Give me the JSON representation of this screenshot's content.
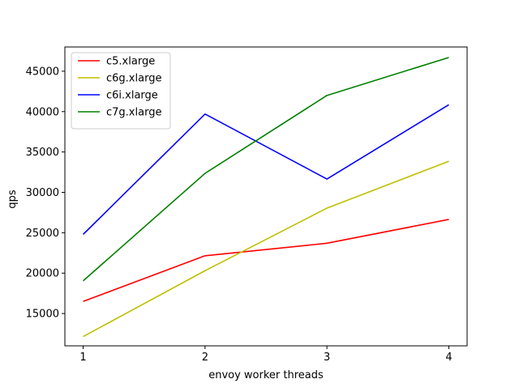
{
  "chart_data": {
    "type": "line",
    "xlabel": "envoy worker threads",
    "ylabel": "qps",
    "x": [
      1,
      2,
      3,
      4
    ],
    "xticks": [
      "1",
      "2",
      "3",
      "4"
    ],
    "xlim": [
      0.85,
      4.15
    ],
    "ylim": [
      11000,
      48000
    ],
    "yticks": [
      15000,
      20000,
      25000,
      30000,
      35000,
      40000,
      45000
    ],
    "ytick_labels": [
      "15000",
      "20000",
      "25000",
      "30000",
      "35000",
      "40000",
      "45000"
    ],
    "legend_position": "upper-left",
    "grid": false,
    "series": [
      {
        "name": "c5.xlarge",
        "color": "#ff0000",
        "values": [
          16500,
          22150,
          23700,
          26650
        ]
      },
      {
        "name": "c6g.xlarge",
        "color": "#bfbf00",
        "values": [
          12150,
          20300,
          28050,
          33850
        ]
      },
      {
        "name": "c6i.xlarge",
        "color": "#0000ff",
        "values": [
          24800,
          39700,
          31650,
          40850
        ]
      },
      {
        "name": "c7g.xlarge",
        "color": "#008000",
        "values": [
          19050,
          32350,
          42000,
          46700
        ]
      }
    ]
  }
}
